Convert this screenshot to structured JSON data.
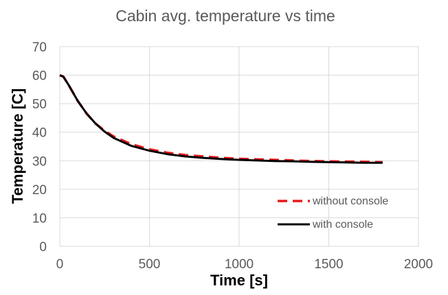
{
  "chart_data": {
    "type": "line",
    "title": "Cabin avg. temperature vs time",
    "xlabel": "Time [s]",
    "ylabel": "Temperature [C]",
    "xlim": [
      0,
      2000
    ],
    "ylim": [
      0,
      70
    ],
    "xticks": [
      0,
      500,
      1000,
      1500,
      2000
    ],
    "yticks": [
      0,
      10,
      20,
      30,
      40,
      50,
      60,
      70
    ],
    "grid": true,
    "legend_position": "bottom-right",
    "series": [
      {
        "name": "without console",
        "color": "#e41a1c",
        "style": "dashed",
        "x": [
          0,
          20,
          50,
          100,
          150,
          200,
          250,
          300,
          400,
          500,
          600,
          700,
          800,
          900,
          1000,
          1100,
          1200,
          1300,
          1400,
          1500,
          1600,
          1700,
          1800
        ],
        "y": [
          60,
          59.5,
          56.5,
          51,
          46.5,
          43,
          40.5,
          38.5,
          35.8,
          34,
          32.8,
          32,
          31.5,
          31,
          30.7,
          30.5,
          30.3,
          30.1,
          29.9,
          29.8,
          29.7,
          29.6,
          29.5
        ]
      },
      {
        "name": "with console",
        "color": "#000000",
        "style": "solid",
        "x": [
          0,
          20,
          50,
          100,
          150,
          200,
          250,
          300,
          400,
          500,
          600,
          700,
          800,
          900,
          1000,
          1100,
          1200,
          1300,
          1400,
          1500,
          1600,
          1700,
          1800
        ],
        "y": [
          60,
          59.5,
          56.5,
          51,
          46.5,
          43,
          40.2,
          38,
          35.2,
          33.5,
          32.3,
          31.5,
          31,
          30.6,
          30.3,
          30.1,
          29.9,
          29.8,
          29.6,
          29.5,
          29.4,
          29.3,
          29.3
        ]
      }
    ]
  }
}
